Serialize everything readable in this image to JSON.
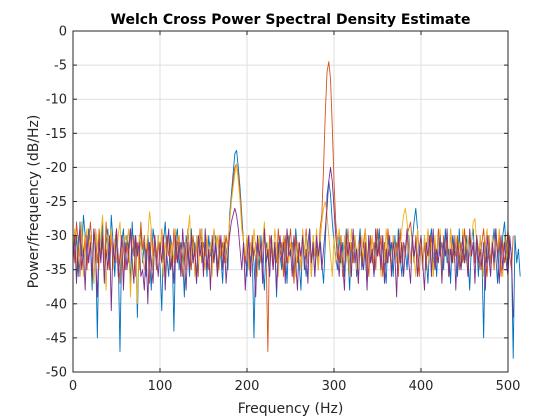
{
  "chart_data": {
    "type": "line",
    "title": "Welch Cross Power Spectral Density Estimate",
    "xlabel": "Frequency (Hz)",
    "ylabel": "Power/frequency (dB/Hz)",
    "xlim": [
      0,
      500
    ],
    "ylim": [
      -50,
      0
    ],
    "xticks": [
      0,
      100,
      200,
      300,
      400,
      500
    ],
    "yticks": [
      0,
      -5,
      -10,
      -15,
      -20,
      -25,
      -30,
      -35,
      -40,
      -45,
      -50
    ],
    "grid": true,
    "x_step": 2,
    "series": [
      {
        "color": "#0072BD",
        "values": [
          -31,
          -33,
          -30,
          -36,
          -28,
          -33,
          -27,
          -30,
          -35,
          -29,
          -31,
          -38,
          -29,
          -32,
          -45,
          -30,
          -33,
          -28,
          -36,
          -31,
          -29,
          -34,
          -27,
          -31,
          -36,
          -30,
          -33,
          -47,
          -31,
          -29,
          -35,
          -30,
          -32,
          -37,
          -28,
          -33,
          -30,
          -42,
          -31,
          -29,
          -34,
          -31,
          -36,
          -30,
          -33,
          -38,
          -29,
          -31,
          -35,
          -30,
          -34,
          -41,
          -31,
          -28,
          -33,
          -36,
          -30,
          -32,
          -44,
          -31,
          -29,
          -35,
          -31,
          -33,
          -39,
          -30,
          -32,
          -36,
          -29,
          -34,
          -31,
          -37,
          -30,
          -33,
          -29,
          -35,
          -31,
          -36,
          -30,
          -33,
          -32,
          -34,
          -30,
          -35,
          -31,
          -33,
          -37,
          -30,
          -32,
          -35,
          -27,
          -24,
          -21,
          -18,
          -17.5,
          -20,
          -23,
          -27,
          -31,
          -33,
          -36,
          -30,
          -34,
          -32,
          -45,
          -33,
          -31,
          -35,
          -30,
          -34,
          -38,
          -31,
          -33,
          -36,
          -30,
          -34,
          -32,
          -39,
          -31,
          -33,
          -35,
          -30,
          -32,
          -37,
          -30,
          -33,
          -31,
          -36,
          -29,
          -32,
          -34,
          -38,
          -30,
          -33,
          -36,
          -31,
          -29,
          -34,
          -32,
          -36,
          -31,
          -33,
          -30,
          -34,
          -37,
          -31,
          -24,
          -22,
          -24,
          -28,
          -31,
          -33,
          -35,
          -30,
          -34,
          -31,
          -36,
          -29,
          -33,
          -38,
          -31,
          -34,
          -30,
          -36,
          -32,
          -29,
          -35,
          -31,
          -33,
          -37,
          -30,
          -34,
          -32,
          -36,
          -31,
          -33,
          -29,
          -35,
          -31,
          -34,
          -37,
          -30,
          -33,
          -31,
          -36,
          -30,
          -34,
          -29,
          -33,
          -36,
          -31,
          -32,
          -35,
          -30,
          -34,
          -31,
          -28,
          -26,
          -29,
          -33,
          -31,
          -35,
          -30,
          -33,
          -37,
          -31,
          -29,
          -34,
          -32,
          -36,
          -30,
          -33,
          -31,
          -35,
          -29,
          -34,
          -32,
          -37,
          -30,
          -33,
          -31,
          -36,
          -29,
          -35,
          -32,
          -34,
          -30,
          -33,
          -38,
          -31,
          -29,
          -34,
          -31,
          -36,
          -30,
          -33,
          -45,
          -31,
          -34,
          -30,
          -35,
          -32,
          -29,
          -33,
          -37,
          -31,
          -34,
          -30,
          -28,
          -32,
          -35,
          -31,
          -33,
          -48,
          -30,
          -34,
          -32,
          -36
        ]
      },
      {
        "color": "#D95319",
        "values": [
          -30,
          -34,
          -28,
          -31,
          -36,
          -29,
          -33,
          -30,
          -35,
          -31,
          -28,
          -32,
          -37,
          -30,
          -34,
          -29,
          -33,
          -31,
          -36,
          -28,
          -32,
          -35,
          -30,
          -34,
          -31,
          -29,
          -33,
          -37,
          -30,
          -32,
          -35,
          -31,
          -34,
          -29,
          -33,
          -30,
          -36,
          -31,
          -35,
          -28,
          -32,
          -30,
          -34,
          -31,
          -37,
          -29,
          -33,
          -30,
          -35,
          -31,
          -34,
          -29,
          -32,
          -36,
          -30,
          -33,
          -31,
          -35,
          -29,
          -34,
          -31,
          -30,
          -33,
          -36,
          -31,
          -34,
          -29,
          -32,
          -35,
          -30,
          -33,
          -31,
          -36,
          -29,
          -34,
          -31,
          -33,
          -30,
          -35,
          -31,
          -34,
          -29,
          -32,
          -36,
          -30,
          -33,
          -31,
          -34,
          -30,
          -32,
          -28,
          -25,
          -22,
          -20,
          -19.5,
          -21,
          -24,
          -28,
          -31,
          -34,
          -30,
          -33,
          -36,
          -30,
          -33,
          -31,
          -35,
          -30,
          -34,
          -31,
          -29,
          -33,
          -47,
          -30,
          -32,
          -35,
          -31,
          -34,
          -29,
          -33,
          -31,
          -36,
          -30,
          -34,
          -32,
          -29,
          -33,
          -37,
          -30,
          -34,
          -31,
          -35,
          -30,
          -33,
          -29,
          -34,
          -31,
          -36,
          -30,
          -33,
          -32,
          -35,
          -29,
          -27,
          -20,
          -12,
          -6,
          -4.5,
          -7,
          -14,
          -22,
          -28,
          -31,
          -34,
          -30,
          -36,
          -31,
          -33,
          -29,
          -35,
          -31,
          -34,
          -30,
          -33,
          -37,
          -30,
          -34,
          -31,
          -29,
          -33,
          -36,
          -30,
          -34,
          -31,
          -35,
          -29,
          -33,
          -30,
          -36,
          -31,
          -34,
          -29,
          -32,
          -35,
          -30,
          -33,
          -31,
          -36,
          -29,
          -34,
          -31,
          -33,
          -30,
          -29,
          -28,
          -31,
          -34,
          -30,
          -33,
          -36,
          -30,
          -34,
          -31,
          -35,
          -29,
          -33,
          -30,
          -36,
          -31,
          -34,
          -29,
          -32,
          -35,
          -30,
          -33,
          -31,
          -36,
          -29,
          -34,
          -31,
          -33,
          -30,
          -35,
          -31,
          -34,
          -29,
          -32,
          -36,
          -30,
          -33,
          -31,
          -34,
          -30,
          -32,
          -35,
          -31,
          -29,
          -33,
          -36,
          -30,
          -34,
          -31,
          -35,
          -29,
          -33,
          -30,
          -36,
          -31,
          -34,
          -32,
          -29,
          -33,
          -35,
          -30
        ]
      },
      {
        "color": "#EDB120",
        "values": [
          -32,
          -29,
          -35,
          -30,
          -33,
          -28,
          -36,
          -31,
          -29,
          -34,
          -30,
          -32,
          -37,
          -29,
          -31,
          -35,
          -30,
          -27,
          -33,
          -38,
          -30,
          -32,
          -29,
          -35,
          -31,
          -34,
          -30,
          -28,
          -33,
          -36,
          -30,
          -31,
          -29,
          -39,
          -33,
          -36,
          -32,
          -40,
          -30,
          -31,
          -33,
          -35,
          -32,
          -30,
          -26.5,
          -29,
          -35,
          -31,
          -33,
          -30,
          -34,
          -29,
          -36,
          -31,
          -33,
          -30,
          -35,
          -31,
          -34,
          -29,
          -33,
          -30,
          -36,
          -31,
          -32,
          -35,
          -30,
          -27,
          -33,
          -31,
          -36,
          -30,
          -34,
          -32,
          -29,
          -33,
          -35,
          -30,
          -34,
          -31,
          -36,
          -29,
          -32,
          -30,
          -35,
          -31,
          -33,
          -30,
          -34,
          -31,
          -28,
          -25,
          -23,
          -21,
          -19.5,
          -22,
          -25,
          -29,
          -31,
          -33,
          -30,
          -35,
          -31,
          -34,
          -29,
          -32,
          -36,
          -30,
          -33,
          -31,
          -28,
          -33,
          -31,
          -35,
          -30,
          -34,
          -29,
          -32,
          -36,
          -31,
          -33,
          -30,
          -35,
          -29,
          -34,
          -31,
          -33,
          -30,
          -36,
          -31,
          -32,
          -35,
          -29,
          -33,
          -30,
          -34,
          -31,
          -36,
          -30,
          -33,
          -29,
          -35,
          -31,
          -28,
          -26,
          -25,
          -27,
          -30,
          -33,
          -36,
          -30,
          -34,
          -31,
          -29,
          -33,
          -35,
          -30,
          -34,
          -31,
          -36,
          -29,
          -32,
          -30,
          -35,
          -31,
          -33,
          -30,
          -34,
          -29,
          -36,
          -31,
          -33,
          -30,
          -35,
          -29,
          -32,
          -31,
          -36,
          -30,
          -34,
          -29,
          -33,
          -31,
          -35,
          -30,
          -32,
          -34,
          -30,
          -33,
          -29,
          -27,
          -26,
          -28,
          -31,
          -34,
          -30,
          -33,
          -36,
          -29,
          -32,
          -31,
          -35,
          -30,
          -33,
          -29,
          -34,
          -31,
          -36,
          -30,
          -33,
          -31,
          -29,
          -35,
          -31,
          -33,
          -30,
          -36,
          -29,
          -32,
          -34,
          -30,
          -33,
          -31,
          -35,
          -29,
          -32,
          -34,
          -30,
          -33,
          -31,
          -28,
          -27.5,
          -31,
          -34,
          -30,
          -33,
          -36,
          -31,
          -29,
          -33,
          -35,
          -30,
          -34,
          -31,
          -32,
          -29,
          -33,
          -36,
          -30,
          -34,
          -31
        ]
      },
      {
        "color": "#7E2F8E",
        "values": [
          -34,
          -30,
          -37,
          -31,
          -29,
          -35,
          -32,
          -38,
          -30,
          -34,
          -31,
          -36,
          -29,
          -33,
          -39,
          -31,
          -34,
          -30,
          -37,
          -32,
          -35,
          -30,
          -41,
          -31,
          -34,
          -29,
          -36,
          -33,
          -30,
          -38,
          -31,
          -35,
          -32,
          -29,
          -34,
          -37,
          -30,
          -33,
          -31,
          -36,
          -35,
          -38,
          -32,
          -40,
          -31,
          -34,
          -37,
          -30,
          -33,
          -36,
          -31,
          -34,
          -30,
          -38,
          -32,
          -29,
          -35,
          -33,
          -37,
          -30,
          -34,
          -31,
          -36,
          -29,
          -33,
          -38,
          -31,
          -35,
          -30,
          -34,
          -32,
          -37,
          -30,
          -33,
          -31,
          -36,
          -29,
          -35,
          -32,
          -38,
          -30,
          -34,
          -31,
          -36,
          -33,
          -30,
          -35,
          -31,
          -37,
          -33,
          -30,
          -28,
          -27,
          -26,
          -27,
          -29,
          -32,
          -35,
          -31,
          -38,
          -33,
          -30,
          -36,
          -31,
          -34,
          -39,
          -30,
          -33,
          -31,
          -37,
          -29,
          -34,
          -32,
          -36,
          -30,
          -35,
          -31,
          -38,
          -33,
          -30,
          -34,
          -31,
          -37,
          -29,
          -33,
          -32,
          -36,
          -30,
          -34,
          -38,
          -31,
          -33,
          -30,
          -35,
          -32,
          -37,
          -29,
          -34,
          -31,
          -36,
          -30,
          -33,
          -31,
          -35,
          -32,
          -29,
          -26,
          -22,
          -20,
          -22,
          -26,
          -30,
          -33,
          -36,
          -31,
          -34,
          -38,
          -30,
          -33,
          -31,
          -36,
          -29,
          -34,
          -32,
          -37,
          -30,
          -33,
          -35,
          -31,
          -38,
          -30,
          -34,
          -32,
          -36,
          -29,
          -33,
          -31,
          -35,
          -30,
          -37,
          -32,
          -34,
          -30,
          -36,
          -31,
          -33,
          -39,
          -30,
          -34,
          -31,
          -36,
          -32,
          -29,
          -34,
          -37,
          -30,
          -33,
          -31,
          -36,
          -32,
          -30,
          -34,
          -38,
          -31,
          -33,
          -30,
          -36,
          -29,
          -35,
          -32,
          -34,
          -30,
          -37,
          -31,
          -33,
          -29,
          -36,
          -32,
          -34,
          -30,
          -38,
          -31,
          -33,
          -35,
          -30,
          -34,
          -32,
          -36,
          -29,
          -33,
          -31,
          -37,
          -30,
          -34,
          -32,
          -35,
          -31,
          -38,
          -30,
          -33,
          -36,
          -31,
          -34,
          -29,
          -33,
          -37,
          -30,
          -35,
          -31,
          -34,
          -36,
          -30,
          -33,
          -42
        ]
      }
    ]
  }
}
